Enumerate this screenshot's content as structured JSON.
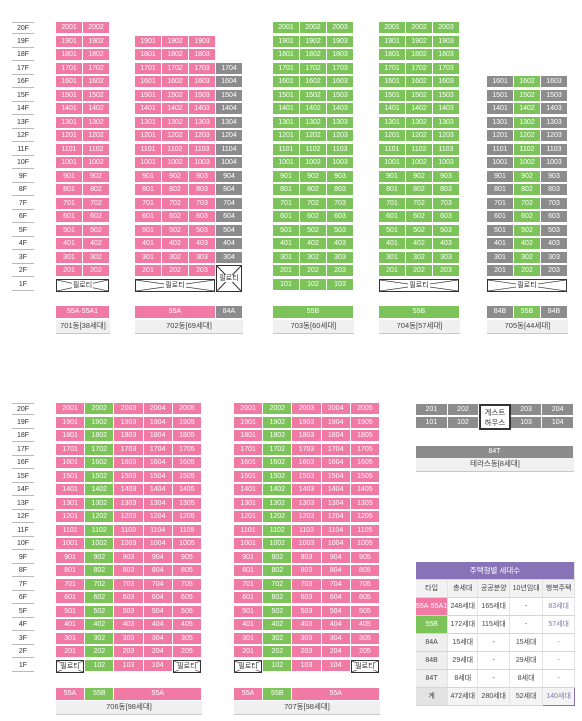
{
  "colors": {
    "pink": "#f07aa4",
    "green": "#7cc35a",
    "gray": "#8c8c8c",
    "text_light": "#ffffff",
    "text_dark": "#333333"
  },
  "pilotis_label": "필로티",
  "guest_house_label": "게스트\n하우스",
  "floors_top": [
    "20F",
    "19F",
    "18F",
    "17F",
    "16F",
    "15F",
    "14F",
    "13F",
    "12F",
    "11F",
    "10F",
    "9F",
    "8F",
    "7F",
    "6F",
    "5F",
    "4F",
    "3F",
    "2F",
    "1F"
  ],
  "floors_bottom": [
    "20F",
    "19F",
    "18F",
    "17F",
    "16F",
    "15F",
    "14F",
    "13F",
    "12F",
    "11F",
    "10F",
    "9F",
    "8F",
    "7F",
    "6F",
    "5F",
    "4F",
    "3F",
    "2F",
    "1F"
  ],
  "buildings": [
    {
      "name": "701동[38세대]",
      "lines": [
        {
          "suffix": "01",
          "type": "p"
        },
        {
          "suffix": "02",
          "type": "p"
        }
      ],
      "top_floor": 20,
      "pilotis": [
        [
          1,
          2
        ]
      ],
      "first_floor_units": [],
      "type_labels": [
        {
          "text": "55A·55A1",
          "type": "p",
          "span": 2
        }
      ]
    },
    {
      "name": "702동[69세대]",
      "lines": [
        {
          "suffix": "01",
          "type": "p"
        },
        {
          "suffix": "02",
          "type": "p"
        },
        {
          "suffix": "03",
          "type": "p"
        },
        {
          "suffix": "04",
          "type": "g",
          "top": 17,
          "pilotis_from": 2
        }
      ],
      "top_floor": 19,
      "pilotis": [
        [
          1,
          3
        ],
        [
          4,
          4
        ]
      ],
      "first_floor_units": [],
      "type_labels": [
        {
          "text": "55A",
          "type": "p",
          "span": 3
        },
        {
          "text": "84A",
          "type": "g",
          "span": 1
        }
      ]
    },
    {
      "name": "703동[60세대]",
      "lines": [
        {
          "suffix": "01",
          "type": "gr"
        },
        {
          "suffix": "02",
          "type": "gr"
        },
        {
          "suffix": "03",
          "type": "gr"
        }
      ],
      "top_floor": 20,
      "pilotis": [],
      "first_floor_units": [
        "101",
        "102",
        "103"
      ],
      "type_labels": [
        {
          "text": "55B",
          "type": "gr",
          "span": 3
        }
      ]
    },
    {
      "name": "704동[57세대]",
      "lines": [
        {
          "suffix": "01",
          "type": "gr"
        },
        {
          "suffix": "02",
          "type": "gr"
        },
        {
          "suffix": "03",
          "type": "gr"
        }
      ],
      "top_floor": 20,
      "pilotis": [
        [
          1,
          3
        ]
      ],
      "first_floor_units": [],
      "type_labels": [
        {
          "text": "55B",
          "type": "gr",
          "span": 3
        }
      ]
    },
    {
      "name": "705동[44세대]",
      "lines": [
        {
          "suffix": "01",
          "type": "g"
        },
        {
          "suffix": "02",
          "type": "gr"
        },
        {
          "suffix": "03",
          "type": "g"
        }
      ],
      "top_floor": 16,
      "pilotis": [
        [
          1,
          3
        ]
      ],
      "first_floor_units": [],
      "type_labels": [
        {
          "text": "84B",
          "type": "g",
          "span": 1
        },
        {
          "text": "55B",
          "type": "gr",
          "span": 1
        },
        {
          "text": "84B",
          "type": "g",
          "span": 1
        }
      ]
    },
    {
      "name": "706동[98세대]",
      "lines": [
        {
          "suffix": "01",
          "type": "p"
        },
        {
          "suffix": "02",
          "type": "gr"
        },
        {
          "suffix": "03",
          "type": "p"
        },
        {
          "suffix": "04",
          "type": "p"
        },
        {
          "suffix": "05",
          "type": "p"
        }
      ],
      "top_floor": 20,
      "pilotis": [
        [
          1,
          1
        ],
        [
          5,
          5
        ]
      ],
      "first_floor_units": [
        "102",
        "103",
        "104"
      ],
      "type_labels": [
        {
          "text": "55A",
          "type": "p",
          "span": 1
        },
        {
          "text": "55B",
          "type": "gr",
          "span": 1
        },
        {
          "text": "55A",
          "type": "p",
          "span": 3
        }
      ]
    },
    {
      "name": "707동[98세대]",
      "lines": [
        {
          "suffix": "01",
          "type": "p"
        },
        {
          "suffix": "02",
          "type": "gr"
        },
        {
          "suffix": "03",
          "type": "p"
        },
        {
          "suffix": "04",
          "type": "p"
        },
        {
          "suffix": "05",
          "type": "p"
        }
      ],
      "top_floor": 20,
      "pilotis": [
        [
          1,
          1
        ],
        [
          5,
          5
        ]
      ],
      "first_floor_units": [
        "102",
        "103",
        "104"
      ],
      "type_labels": [
        {
          "text": "55A",
          "type": "p",
          "span": 1
        },
        {
          "text": "55B",
          "type": "gr",
          "span": 1
        },
        {
          "text": "55A",
          "type": "p",
          "span": 3
        }
      ]
    }
  ],
  "terrace": {
    "name": "테라스동[8세대]",
    "type_label": "84T",
    "row2": [
      "201",
      "202",
      "게스트 하우스",
      "203",
      "204"
    ],
    "row1": [
      "101",
      "102",
      "103",
      "104"
    ]
  },
  "summary": {
    "title": "주택형별 세대수",
    "headers": [
      "타입",
      "총세대",
      "공공분양",
      "10년임대",
      "행복주택"
    ],
    "rows": [
      {
        "type": "55A·55A1",
        "total": "248세대",
        "public": "165세대",
        "rent10": "-",
        "happy": "83세대",
        "color": "p"
      },
      {
        "type": "55B",
        "total": "172세대",
        "public": "115세대",
        "rent10": "-",
        "happy": "57세대",
        "color": "gr"
      },
      {
        "type": "84A",
        "total": "15세대",
        "public": "-",
        "rent10": "15세대",
        "happy": "-",
        "color": ""
      },
      {
        "type": "84B",
        "total": "29세대",
        "public": "-",
        "rent10": "29세대",
        "happy": "-",
        "color": ""
      },
      {
        "type": "84T",
        "total": "8세대",
        "public": "-",
        "rent10": "8세대",
        "happy": "-",
        "color": ""
      },
      {
        "type": "계",
        "total": "472세대",
        "public": "280세대",
        "rent10": "52세대",
        "happy": "140세대",
        "color": ""
      }
    ]
  }
}
